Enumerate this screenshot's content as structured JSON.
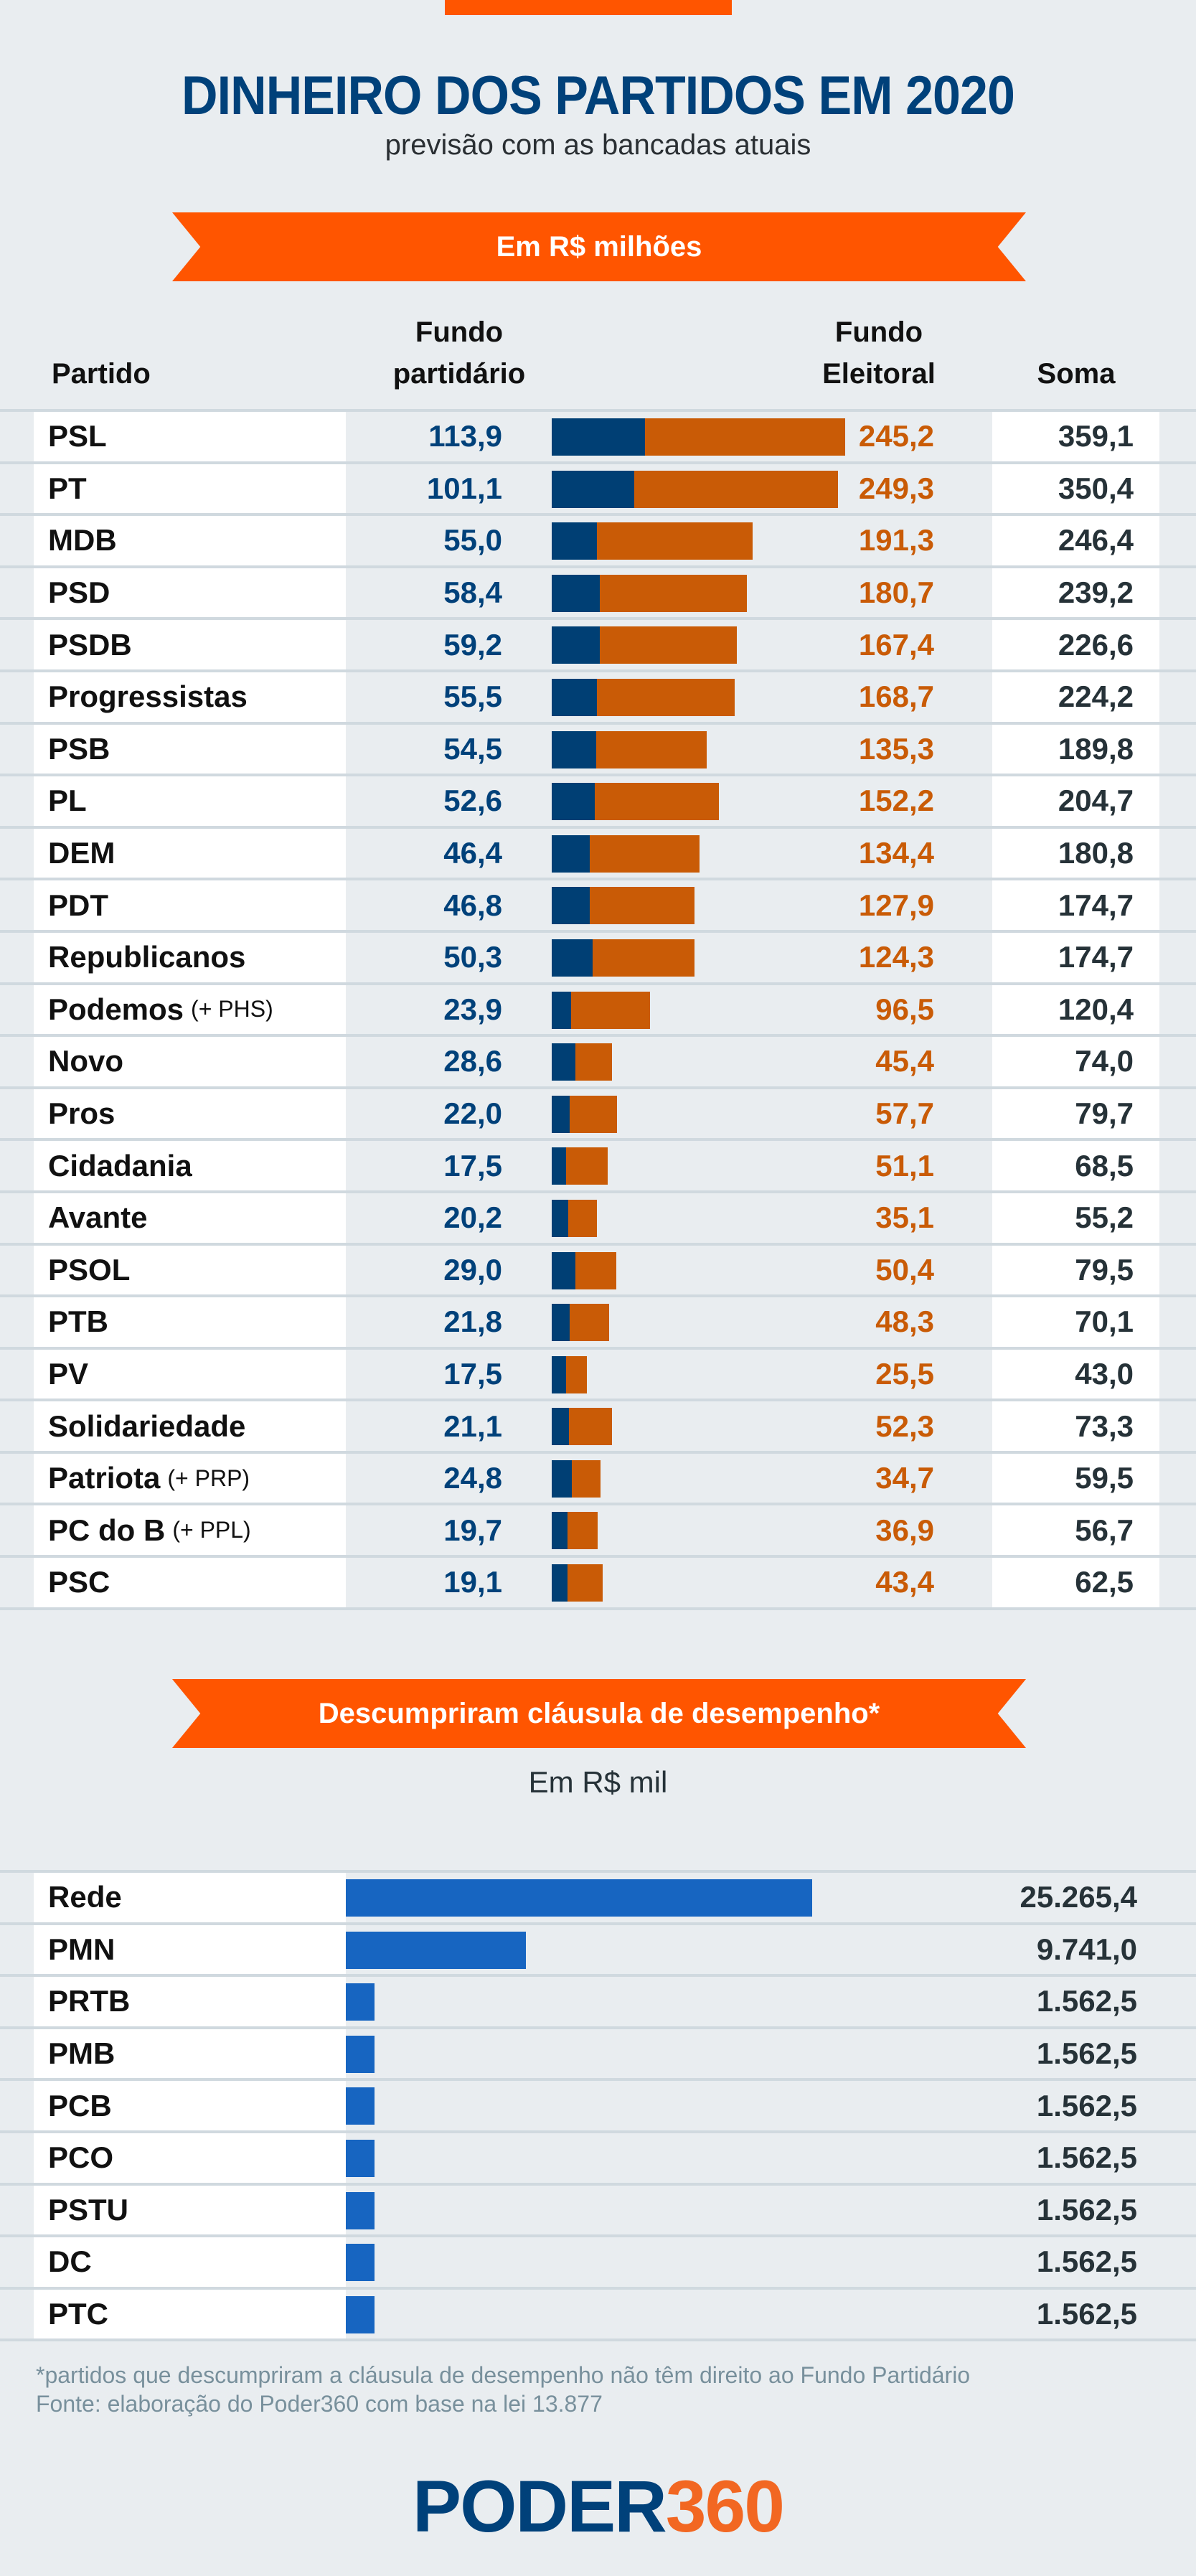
{
  "header": {
    "title": "DINHEIRO DOS PARTIDOS EM 2020",
    "subtitle": "previsão com as bancadas atuais",
    "section1_label": "Em R$ milhões",
    "section2_label": "Descumpriram cláusula de desempenho*",
    "section2_unit": "Em R$ mil"
  },
  "columns": {
    "partido": "Partido",
    "fundo_partidario_l1": "Fundo",
    "fundo_partidario_l2": "partidário",
    "fundo_eleitoral_l1": "Fundo",
    "fundo_eleitoral_l2": "Eleitoral",
    "soma": "Soma"
  },
  "colors": {
    "accent_orange": "#ff5500",
    "fundo_partidario": "#003f74",
    "fundo_eleitoral": "#c95b06",
    "clausula_bar": "#1765c1",
    "title_blue": "#00417a"
  },
  "chart_data": [
    {
      "type": "bar",
      "stacked": true,
      "orientation": "horizontal",
      "title": "Em R$ milhões",
      "categories": [
        "PSL",
        "PT",
        "MDB",
        "PSD",
        "PSDB",
        "Progressistas",
        "PSB",
        "PL",
        "DEM",
        "PDT",
        "Republicanos",
        "Podemos",
        "Novo",
        "Pros",
        "Cidadania",
        "Avante",
        "PSOL",
        "PTB",
        "PV",
        "Solidariedade",
        "Patriota",
        "PC do B",
        "PSC"
      ],
      "category_suffixes": [
        "",
        "",
        "",
        "",
        "",
        "",
        "",
        "",
        "",
        "",
        "",
        "(+ PHS)",
        "",
        "",
        "",
        "",
        "",
        "",
        "",
        "",
        "(+ PRP)",
        "(+ PPL)",
        ""
      ],
      "series": [
        {
          "name": "Fundo partidário",
          "values": [
            113.9,
            101.1,
            55.0,
            58.4,
            59.2,
            55.5,
            54.5,
            52.6,
            46.4,
            46.8,
            50.3,
            23.9,
            28.6,
            22.0,
            17.5,
            20.2,
            29.0,
            21.8,
            17.5,
            21.1,
            24.8,
            19.7,
            19.1
          ],
          "labels": [
            "113,9",
            "101,1",
            "55,0",
            "58,4",
            "59,2",
            "55,5",
            "54,5",
            "52,6",
            "46,4",
            "46,8",
            "50,3",
            "23,9",
            "28,6",
            "22,0",
            "17,5",
            "20,2",
            "29,0",
            "21,8",
            "17,5",
            "21,1",
            "24,8",
            "19,7",
            "19,1"
          ]
        },
        {
          "name": "Fundo Eleitoral",
          "values": [
            245.2,
            249.3,
            191.3,
            180.7,
            167.4,
            168.7,
            135.3,
            152.2,
            134.4,
            127.9,
            124.3,
            96.5,
            45.4,
            57.7,
            51.1,
            35.1,
            50.4,
            48.3,
            25.5,
            52.3,
            34.7,
            36.9,
            43.4
          ],
          "labels": [
            "245,2",
            "249,3",
            "191,3",
            "180,7",
            "167,4",
            "168,7",
            "135,3",
            "152,2",
            "134,4",
            "127,9",
            "124,3",
            "96,5",
            "45,4",
            "57,7",
            "51,1",
            "35,1",
            "50,4",
            "48,3",
            "25,5",
            "52,3",
            "34,7",
            "36,9",
            "43,4"
          ]
        }
      ],
      "totals": {
        "name": "Soma",
        "labels": [
          "359,1",
          "350,4",
          "246,4",
          "239,2",
          "226,6",
          "224,2",
          "189,8",
          "204,7",
          "180,8",
          "174,7",
          "174,7",
          "120,4",
          "74,0",
          "79,7",
          "68,5",
          "55,2",
          "79,5",
          "70,1",
          "43,0",
          "73,3",
          "59,5",
          "56,7",
          "62,5"
        ]
      },
      "xlim": [
        0,
        360
      ]
    },
    {
      "type": "bar",
      "orientation": "horizontal",
      "title": "Descumpriram cláusula de desempenho*",
      "subtitle": "Em R$ mil",
      "categories": [
        "Rede",
        "PMN",
        "PRTB",
        "PMB",
        "PCB",
        "PCO",
        "PSTU",
        "DC",
        "PTC"
      ],
      "values": [
        25265.4,
        9741.0,
        1562.5,
        1562.5,
        1562.5,
        1562.5,
        1562.5,
        1562.5,
        1562.5
      ],
      "labels": [
        "25.265,4",
        "9.741,0",
        "1.562,5",
        "1.562,5",
        "1.562,5",
        "1.562,5",
        "1.562,5",
        "1.562,5",
        "1.562,5"
      ],
      "xlim": [
        0,
        25265.4
      ]
    }
  ],
  "footer": {
    "note": "*partidos que descumpriram a cláusula de desempenho não têm direito ao Fundo Partidário",
    "source": "Fonte: elaboração do  Poder360 com base na lei 13.877",
    "logo_part1": "PODER",
    "logo_part2": "360"
  }
}
